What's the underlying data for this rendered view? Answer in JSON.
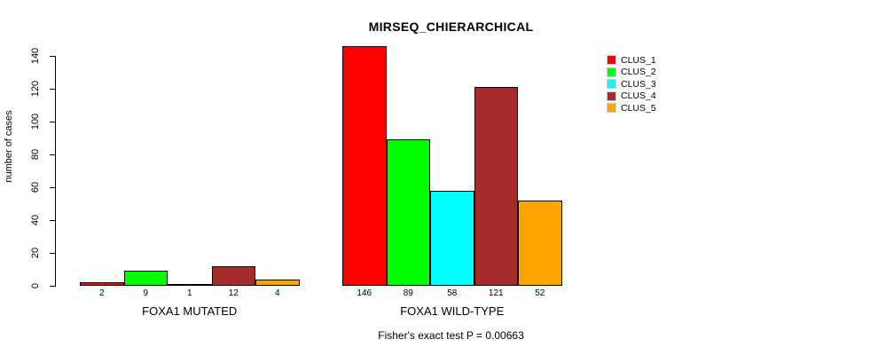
{
  "title": "MIRSEQ_CHIERARCHICAL",
  "chart_data": {
    "type": "bar",
    "title": "MIRSEQ_CHIERARCHICAL",
    "ylabel": "number of cases",
    "xlabel": "",
    "ylim": [
      0,
      140
    ],
    "yticks": [
      0,
      20,
      40,
      60,
      80,
      100,
      120,
      140
    ],
    "grid": false,
    "legend_position": "top-right",
    "categories": [
      "FOXA1 MUTATED",
      "FOXA1 WILD-TYPE"
    ],
    "series": [
      {
        "name": "CLUS_1",
        "color": "#FF0000",
        "values": [
          2,
          146
        ]
      },
      {
        "name": "CLUS_2",
        "color": "#00FF00",
        "values": [
          9,
          89
        ]
      },
      {
        "name": "CLUS_3",
        "color": "#00FFFF",
        "values": [
          1,
          58
        ]
      },
      {
        "name": "CLUS_4",
        "color": "#A52A2A",
        "values": [
          12,
          121
        ]
      },
      {
        "name": "CLUS_5",
        "color": "#FFA500",
        "values": [
          4,
          52
        ]
      }
    ],
    "bar_value_labels": [
      [
        2,
        9,
        1,
        12,
        4
      ],
      [
        146,
        89,
        58,
        121,
        52
      ]
    ],
    "annotation": "Fisher's exact test P = 0.00663"
  }
}
